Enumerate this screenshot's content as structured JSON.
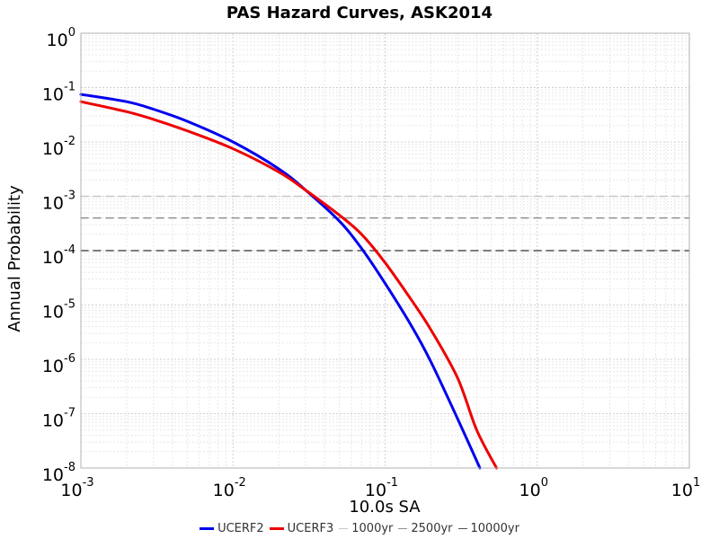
{
  "chart_data": {
    "type": "line",
    "title": "PAS Hazard Curves, ASK2014",
    "xlabel": "10.0s SA",
    "ylabel": "Annual Probability",
    "x_scale": "log",
    "y_scale": "log",
    "xlim": [
      0.001,
      10
    ],
    "ylim": [
      1e-08,
      1
    ],
    "grid": true,
    "legend_position": "bottom",
    "x_ticks": [
      {
        "base": "10",
        "exp": "-3"
      },
      {
        "base": "10",
        "exp": "-2"
      },
      {
        "base": "10",
        "exp": "-1"
      },
      {
        "base": "10",
        "exp": "0"
      },
      {
        "base": "10",
        "exp": "1"
      }
    ],
    "y_ticks": [
      {
        "base": "10",
        "exp": "0"
      },
      {
        "base": "10",
        "exp": "-1"
      },
      {
        "base": "10",
        "exp": "-2"
      },
      {
        "base": "10",
        "exp": "-3"
      },
      {
        "base": "10",
        "exp": "-4"
      },
      {
        "base": "10",
        "exp": "-5"
      },
      {
        "base": "10",
        "exp": "-6"
      },
      {
        "base": "10",
        "exp": "-7"
      },
      {
        "base": "10",
        "exp": "-8"
      }
    ],
    "series": [
      {
        "name": "UCERF2",
        "color": "#0000ee",
        "style": "solid",
        "points": [
          [
            0.001,
            0.075
          ],
          [
            0.002,
            0.055
          ],
          [
            0.003,
            0.04
          ],
          [
            0.005,
            0.024
          ],
          [
            0.01,
            0.01
          ],
          [
            0.02,
            0.0032
          ],
          [
            0.03,
            0.0013
          ],
          [
            0.05,
            0.00035
          ],
          [
            0.07,
            0.00011
          ],
          [
            0.1,
            2.5e-05
          ],
          [
            0.15,
            4e-06
          ],
          [
            0.2,
            9e-07
          ],
          [
            0.3,
            8e-08
          ],
          [
            0.42,
            1e-08
          ]
        ]
      },
      {
        "name": "UCERF3",
        "color": "#ee0000",
        "style": "solid",
        "points": [
          [
            0.001,
            0.055
          ],
          [
            0.002,
            0.036
          ],
          [
            0.003,
            0.026
          ],
          [
            0.005,
            0.016
          ],
          [
            0.01,
            0.0075
          ],
          [
            0.02,
            0.0028
          ],
          [
            0.03,
            0.0013
          ],
          [
            0.05,
            0.00045
          ],
          [
            0.07,
            0.0002
          ],
          [
            0.1,
            6e-05
          ],
          [
            0.15,
            1.2e-05
          ],
          [
            0.2,
            3.5e-06
          ],
          [
            0.3,
            4.5e-07
          ],
          [
            0.4,
            5e-08
          ],
          [
            0.54,
            1e-08
          ]
        ]
      },
      {
        "name": "1000yr",
        "color": "#c8c8c8",
        "style": "dashed",
        "points": [
          [
            0.001,
            0.001
          ],
          [
            10,
            0.001
          ]
        ]
      },
      {
        "name": "2500yr",
        "color": "#909090",
        "style": "dashed",
        "points": [
          [
            0.001,
            0.0004
          ],
          [
            10,
            0.0004
          ]
        ]
      },
      {
        "name": "10000yr",
        "color": "#505050",
        "style": "dashed",
        "points": [
          [
            0.001,
            0.0001
          ],
          [
            10,
            0.0001
          ]
        ]
      }
    ]
  }
}
